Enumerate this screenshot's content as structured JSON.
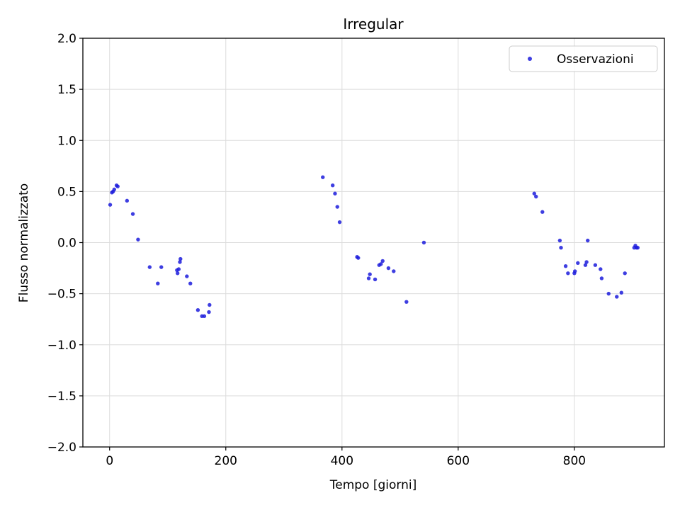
{
  "chart_data": {
    "type": "scatter",
    "title": "Irregular",
    "xlabel": "Tempo [giorni]",
    "ylabel": "Flusso normalizzato",
    "xlim": [
      -46,
      955
    ],
    "ylim": [
      -2.0,
      2.0
    ],
    "xticks": [
      0,
      200,
      400,
      600,
      800
    ],
    "xtick_labels": [
      "0",
      "200",
      "400",
      "600",
      "800"
    ],
    "yticks": [
      2.0,
      1.5,
      1.0,
      0.5,
      0.0,
      -0.5,
      -1.0,
      -1.5,
      -2.0
    ],
    "ytick_labels": [
      "2.0",
      "1.5",
      "1.0",
      "0.5",
      "0.0",
      "−0.5",
      "−1.0",
      "−1.5",
      "−2.0"
    ],
    "grid": true,
    "legend_position": "top-right",
    "colors": {
      "points": "#1c1cdc"
    },
    "series": [
      {
        "name": "Osservazioni",
        "points": [
          [
            1,
            0.37
          ],
          [
            4,
            0.49
          ],
          [
            6,
            0.5
          ],
          [
            8,
            0.52
          ],
          [
            12,
            0.56
          ],
          [
            14,
            0.55
          ],
          [
            30,
            0.41
          ],
          [
            40,
            0.28
          ],
          [
            49,
            0.03
          ],
          [
            69,
            -0.24
          ],
          [
            83,
            -0.4
          ],
          [
            89,
            -0.24
          ],
          [
            116,
            -0.27
          ],
          [
            117,
            -0.3
          ],
          [
            119,
            -0.26
          ],
          [
            121,
            -0.19
          ],
          [
            122,
            -0.16
          ],
          [
            133,
            -0.33
          ],
          [
            139,
            -0.4
          ],
          [
            152,
            -0.66
          ],
          [
            159,
            -0.72
          ],
          [
            163,
            -0.72
          ],
          [
            171,
            -0.68
          ],
          [
            172,
            -0.61
          ],
          [
            367,
            0.64
          ],
          [
            384,
            0.56
          ],
          [
            388,
            0.48
          ],
          [
            392,
            0.35
          ],
          [
            396,
            0.2
          ],
          [
            426,
            -0.14
          ],
          [
            428,
            -0.15
          ],
          [
            446,
            -0.35
          ],
          [
            448,
            -0.31
          ],
          [
            457,
            -0.36
          ],
          [
            464,
            -0.22
          ],
          [
            467,
            -0.21
          ],
          [
            470,
            -0.18
          ],
          [
            480,
            -0.25
          ],
          [
            489,
            -0.28
          ],
          [
            511,
            -0.58
          ],
          [
            541,
            0.0
          ],
          [
            731,
            0.48
          ],
          [
            734,
            0.45
          ],
          [
            745,
            0.3
          ],
          [
            775,
            0.02
          ],
          [
            777,
            -0.05
          ],
          [
            785,
            -0.23
          ],
          [
            789,
            -0.3
          ],
          [
            800,
            -0.3
          ],
          [
            801,
            -0.28
          ],
          [
            806,
            -0.2
          ],
          [
            819,
            -0.22
          ],
          [
            821,
            -0.19
          ],
          [
            823,
            0.02
          ],
          [
            836,
            -0.22
          ],
          [
            845,
            -0.26
          ],
          [
            847,
            -0.35
          ],
          [
            859,
            -0.5
          ],
          [
            873,
            -0.53
          ],
          [
            881,
            -0.49
          ],
          [
            887,
            -0.3
          ],
          [
            903,
            -0.05
          ],
          [
            905,
            -0.03
          ],
          [
            907,
            -0.05
          ],
          [
            909,
            -0.05
          ]
        ]
      }
    ]
  }
}
